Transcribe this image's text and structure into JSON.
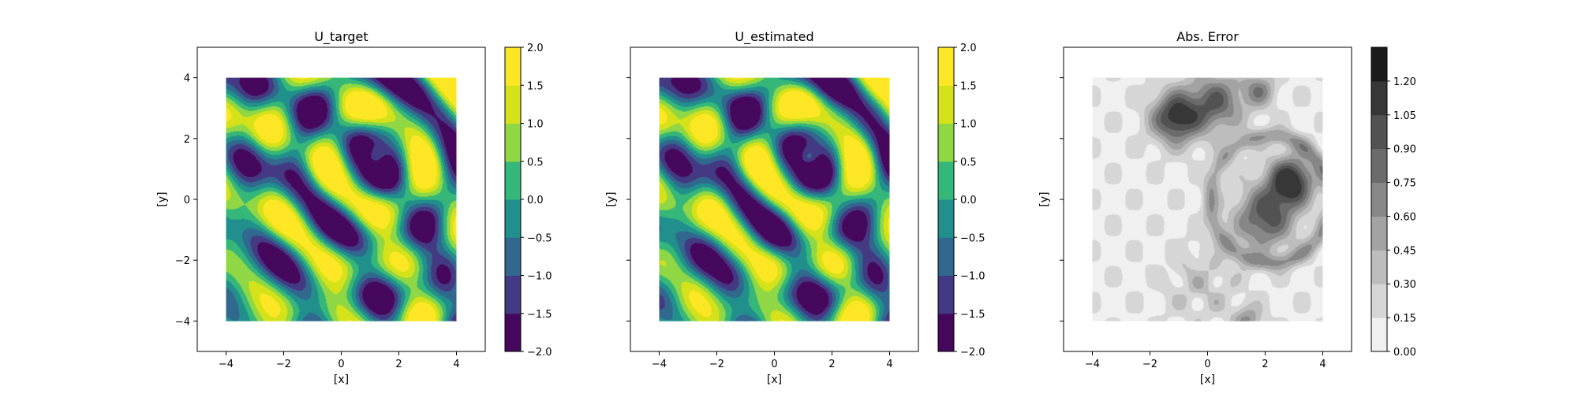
{
  "chart_data": [
    {
      "type": "heatmap",
      "title": "U_target",
      "xlabel": "[x]",
      "ylabel": "[y]",
      "xlim": [
        -5,
        5
      ],
      "ylim": [
        -5,
        5
      ],
      "data_extent": {
        "x": [
          -4,
          4
        ],
        "y": [
          -4,
          4
        ]
      },
      "xticks": [
        -4,
        -2,
        0,
        2,
        4
      ],
      "yticks": [
        -4,
        -2,
        0,
        2,
        4
      ],
      "show_ytick_labels": true,
      "colormap": "viridis",
      "colorbar_levels": [
        -2.0,
        -1.5,
        -1.0,
        -0.5,
        0.0,
        0.5,
        1.0,
        1.5,
        2.0
      ],
      "colorbar_tick_labels": [
        "−2.0",
        "−1.5",
        "−1.0",
        "−0.5",
        "0.0",
        "0.5",
        "1.0",
        "1.5",
        "2.0"
      ],
      "colorbar_colors": [
        "#46085c",
        "#443a83",
        "#31688e",
        "#21908d",
        "#35b779",
        "#8fd744",
        "#d5e21a",
        "#fde725"
      ]
    },
    {
      "type": "heatmap",
      "title": "U_estimated",
      "xlabel": "[x]",
      "ylabel": "[y]",
      "xlim": [
        -5,
        5
      ],
      "ylim": [
        -5,
        5
      ],
      "data_extent": {
        "x": [
          -4,
          4
        ],
        "y": [
          -4,
          4
        ]
      },
      "xticks": [
        -4,
        -2,
        0,
        2,
        4
      ],
      "yticks": [
        -4,
        -2,
        0,
        2,
        4
      ],
      "show_ytick_labels": false,
      "colormap": "viridis",
      "colorbar_levels": [
        -2.0,
        -1.5,
        -1.0,
        -0.5,
        0.0,
        0.5,
        1.0,
        1.5,
        2.0
      ],
      "colorbar_tick_labels": [
        "−2.0",
        "−1.5",
        "−1.0",
        "−0.5",
        "0.0",
        "0.5",
        "1.0",
        "1.5",
        "2.0"
      ],
      "colorbar_colors": [
        "#46085c",
        "#443a83",
        "#31688e",
        "#21908d",
        "#35b779",
        "#8fd744",
        "#d5e21a",
        "#fde725"
      ]
    },
    {
      "type": "heatmap",
      "title": "Abs. Error",
      "xlabel": "[x]",
      "ylabel": "[y]",
      "xlim": [
        -5,
        5
      ],
      "ylim": [
        -5,
        5
      ],
      "data_extent": {
        "x": [
          -4,
          4
        ],
        "y": [
          -4,
          4
        ]
      },
      "xticks": [
        -4,
        -2,
        0,
        2,
        4
      ],
      "yticks": [
        -4,
        -2,
        0,
        2,
        4
      ],
      "show_ytick_labels": false,
      "colormap": "gray_r",
      "colorbar_levels": [
        0.0,
        0.15,
        0.3,
        0.45,
        0.6,
        0.75,
        0.9,
        1.05,
        1.2
      ],
      "colorbar_tick_labels": [
        "0.00",
        "0.15",
        "0.30",
        "0.45",
        "0.60",
        "0.75",
        "0.90",
        "1.05",
        "1.20"
      ],
      "colorbar_colors": [
        "#f0f0f0",
        "#d6d6d6",
        "#bdbdbd",
        "#a3a3a3",
        "#878787",
        "#6b6b6b",
        "#525252",
        "#373737",
        "#1a1a1a"
      ]
    }
  ]
}
